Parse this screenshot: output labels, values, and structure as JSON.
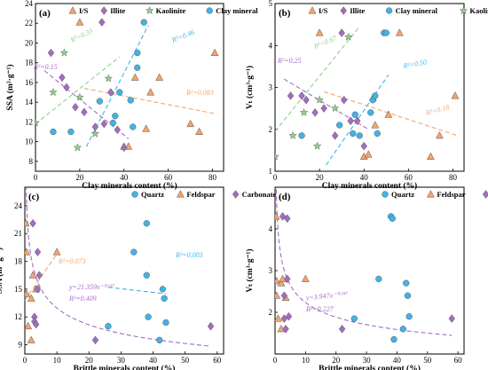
{
  "chart_data": [
    {
      "panel": "(a)",
      "type": "scatter",
      "xlabel": "Clay minerals content (%)",
      "ylabel": "SSA (m²·g⁻¹)",
      "xlim": [
        0,
        85
      ],
      "ylim": [
        7,
        24
      ],
      "xticks": [
        0,
        20,
        40,
        60,
        80
      ],
      "yticks": [
        8,
        10,
        12,
        14,
        16,
        18,
        20,
        22,
        24
      ],
      "legend": [
        "I/S",
        "Illite",
        "Kaolinite",
        "Clay mineral"
      ],
      "legend_position": "top",
      "series": [
        {
          "name": "I/S",
          "marker": "triangle",
          "color": "#f4a36c",
          "points": [
            [
              20,
              22.1
            ],
            [
              45,
              16.5
            ],
            [
              50,
              11.3
            ],
            [
              52,
              15.0
            ],
            [
              56,
              16.5
            ],
            [
              70,
              11.8
            ],
            [
              74,
              11.0
            ],
            [
              81,
              19.0
            ],
            [
              40,
              9.5
            ],
            [
              42,
              9.5
            ]
          ]
        },
        {
          "name": "Illite",
          "marker": "diamond",
          "color": "#a46cc4",
          "points": [
            [
              7,
              19.0
            ],
            [
              12,
              16.5
            ],
            [
              14,
              15.5
            ],
            [
              18,
              13.5
            ],
            [
              27,
              11.5
            ],
            [
              30,
              22.1
            ],
            [
              31,
              11.8
            ],
            [
              34,
              15.0
            ],
            [
              37,
              11.2
            ],
            [
              40,
              9.4
            ],
            [
              22,
              13.0
            ]
          ]
        },
        {
          "name": "Kaolinite",
          "marker": "star",
          "color": "#8ed08b",
          "points": [
            [
              0,
              11.9
            ],
            [
              8,
              15.0
            ],
            [
              13,
              19.0
            ],
            [
              19,
              9.4
            ],
            [
              20,
              14.5
            ],
            [
              27,
              10.8
            ],
            [
              33,
              16.4
            ]
          ]
        },
        {
          "name": "Clay mineral",
          "marker": "circle",
          "color": "#3fb4e8",
          "points": [
            [
              8,
              11.0
            ],
            [
              16,
              11.0
            ],
            [
              29,
              14.1
            ],
            [
              35,
              11.9
            ],
            [
              36,
              12.6
            ],
            [
              38,
              15.0
            ],
            [
              43,
              14.2
            ],
            [
              44,
              11.5
            ],
            [
              46,
              19.0
            ],
            [
              46,
              17.5
            ],
            [
              49,
              22.1
            ]
          ]
        }
      ],
      "trendlines": [
        {
          "color": "#f4a36c",
          "x": [
            22,
            82
          ],
          "y": [
            15.4,
            12.8
          ],
          "r2": "R²=0.083"
        },
        {
          "color": "#a46cc4",
          "x": [
            4,
            42
          ],
          "y": [
            17.2,
            10.3
          ],
          "r2": "R²=0.15"
        },
        {
          "color": "#8ed08b",
          "x": [
            0,
            38
          ],
          "y": [
            11.8,
            18.6
          ],
          "r2": "R²=0.33"
        },
        {
          "color": "#3fb4e8",
          "x": [
            23,
            51
          ],
          "y": [
            9.5,
            21.8
          ],
          "r2": "R²=0.46"
        }
      ]
    },
    {
      "panel": "(b)",
      "type": "scatter",
      "xlabel": "Clay minerals content (%)",
      "ylabel": "Vₜ (cm³·g⁻¹)",
      "xlim": [
        0,
        85
      ],
      "ylim": [
        1.0,
        5.0
      ],
      "xticks": [
        0,
        20,
        40,
        60,
        80
      ],
      "yticks": [
        1,
        2,
        3,
        4,
        5
      ],
      "legend": [
        "I/S",
        "Illite",
        "Clay mineral",
        "Kaolinite"
      ],
      "legend_position": "top",
      "series": [
        {
          "name": "I/S",
          "marker": "triangle",
          "color": "#f4a36c",
          "points": [
            [
              20,
              4.3
            ],
            [
              44,
              2.75
            ],
            [
              45,
              2.1
            ],
            [
              51,
              2.35
            ],
            [
              56,
              4.3
            ],
            [
              70,
              1.35
            ],
            [
              74,
              1.85
            ],
            [
              81,
              2.8
            ],
            [
              40,
              1.35
            ],
            [
              42,
              1.4
            ]
          ]
        },
        {
          "name": "Illite",
          "marker": "diamond",
          "color": "#a46cc4",
          "points": [
            [
              7,
              2.8
            ],
            [
              12,
              2.8
            ],
            [
              14,
              2.7
            ],
            [
              18,
              2.4
            ],
            [
              27,
              1.85
            ],
            [
              30,
              4.3
            ],
            [
              31,
              2.7
            ],
            [
              34,
              2.2
            ],
            [
              37,
              2.2
            ],
            [
              40,
              1.6
            ],
            [
              22,
              2.5
            ]
          ]
        },
        {
          "name": "Clay mineral",
          "marker": "circle",
          "color": "#3fb4e8",
          "points": [
            [
              12,
              1.85
            ],
            [
              29,
              2.1
            ],
            [
              35,
              1.9
            ],
            [
              36,
              2.35
            ],
            [
              38,
              1.85
            ],
            [
              43,
              2.4
            ],
            [
              44,
              2.7
            ],
            [
              45,
              2.8
            ],
            [
              46,
              1.9
            ],
            [
              49,
              4.3
            ],
            [
              50,
              4.3
            ]
          ]
        },
        {
          "name": "Kaolinite",
          "marker": "star",
          "color": "#8ed08b",
          "points": [
            [
              0,
              1.35
            ],
            [
              8,
              1.85
            ],
            [
              13,
              2.4
            ],
            [
              19,
              1.6
            ],
            [
              20,
              2.7
            ],
            [
              27,
              2.5
            ],
            [
              33,
              4.2
            ]
          ]
        }
      ],
      "trendlines": [
        {
          "color": "#f4a36c",
          "x": [
            22,
            82
          ],
          "y": [
            2.9,
            1.85
          ],
          "r2": "R²=0.18"
        },
        {
          "color": "#a46cc4",
          "x": [
            4,
            42
          ],
          "y": [
            3.2,
            2.0
          ],
          "r2": "R²=0.25"
        },
        {
          "color": "#8ed08b",
          "x": [
            0,
            38
          ],
          "y": [
            1.95,
            4.45
          ],
          "r2": "R²=0.67"
        },
        {
          "color": "#3fb4e8",
          "x": [
            23,
            51
          ],
          "y": [
            1.15,
            3.3
          ],
          "r2": "R²=0.50"
        }
      ]
    },
    {
      "panel": "(c)",
      "type": "scatter",
      "xlabel": "Brittle minerals content (%)",
      "ylabel": "SSA (m²·g⁻¹)",
      "xlim": [
        0,
        62
      ],
      "ylim": [
        8,
        26
      ],
      "xticks": [
        0,
        10,
        20,
        30,
        40,
        50,
        60
      ],
      "yticks": [
        9,
        12,
        15,
        18,
        21,
        24
      ],
      "legend": [
        "Quartz",
        "Feldspar",
        "Carbonate"
      ],
      "legend_position": "top",
      "series": [
        {
          "name": "Quartz",
          "marker": "circle",
          "color": "#3fb4e8",
          "points": [
            [
              26,
              11.0
            ],
            [
              34,
              19.0
            ],
            [
              38,
              22.1
            ],
            [
              38,
              16.5
            ],
            [
              38.5,
              12.0
            ],
            [
              42,
              9.5
            ],
            [
              43,
              15.0
            ],
            [
              43.5,
              14.0
            ],
            [
              44,
              11.4
            ]
          ]
        },
        {
          "name": "Feldspar",
          "marker": "triangle",
          "color": "#f4a36c",
          "points": [
            [
              0.3,
              22.1
            ],
            [
              0.5,
              19.0
            ],
            [
              0.5,
              14.5
            ],
            [
              1,
              11.0
            ],
            [
              2,
              14.0
            ],
            [
              2.5,
              16.5
            ],
            [
              3.5,
              15.0
            ],
            [
              10,
              19.0
            ],
            [
              2,
              9.5
            ]
          ]
        },
        {
          "name": "Carbonate",
          "marker": "diamond",
          "color": "#a46cc4",
          "points": [
            [
              2.5,
              22.1
            ],
            [
              3,
              12.0
            ],
            [
              3,
              11.5
            ],
            [
              3.5,
              11.2
            ],
            [
              4,
              19.0
            ],
            [
              4,
              15.0
            ],
            [
              4.5,
              16.5
            ],
            [
              22,
              9.5
            ],
            [
              58,
              11.0
            ]
          ]
        }
      ],
      "trendlines": [
        {
          "color": "#f4a36c",
          "type": "linear",
          "x": [
            0,
            10
          ],
          "y": [
            13.8,
            18.8
          ],
          "r2": "R²=0.073"
        },
        {
          "color": "#3fb4e8",
          "type": "linear",
          "x": [
            26,
            44
          ],
          "y": [
            15.2,
            14.5
          ],
          "r2": "R²=0.003"
        },
        {
          "color": "#a46cc4",
          "type": "power",
          "a": 21.359,
          "b": -0.217,
          "x": [
            0.3,
            58
          ],
          "equation": "y=21.359x⁻⁰·²¹⁷",
          "r2": "R²=0.409"
        }
      ]
    },
    {
      "panel": "(d)",
      "type": "scatter",
      "xlabel": "Brittle minerals content (%)",
      "ylabel": "Vₜ (cm³·g⁻¹)",
      "xlim": [
        0,
        62
      ],
      "ylim": [
        1.0,
        5.0
      ],
      "xticks": [
        0,
        10,
        20,
        30,
        40,
        50,
        60
      ],
      "yticks": [
        2,
        3,
        4
      ],
      "legend": [
        "Quartz",
        "Feldspar",
        "Carbonate"
      ],
      "legend_position": "top",
      "series": [
        {
          "name": "Quartz",
          "marker": "circle",
          "color": "#3fb4e8",
          "points": [
            [
              26,
              1.85
            ],
            [
              34,
              2.8
            ],
            [
              38,
              4.3
            ],
            [
              38.5,
              4.25
            ],
            [
              39,
              1.35
            ],
            [
              42,
              1.6
            ],
            [
              43,
              2.7
            ],
            [
              43.5,
              2.4
            ],
            [
              44,
              1.9
            ]
          ]
        },
        {
          "name": "Feldspar",
          "marker": "triangle",
          "color": "#f4a36c",
          "points": [
            [
              0.3,
              4.3
            ],
            [
              0.5,
              2.75
            ],
            [
              0.5,
              2.4
            ],
            [
              1,
              1.85
            ],
            [
              2,
              2.7
            ],
            [
              2.5,
              2.8
            ],
            [
              3.5,
              2.35
            ],
            [
              10,
              2.8
            ],
            [
              2,
              1.6
            ]
          ]
        },
        {
          "name": "Carbonate",
          "marker": "diamond",
          "color": "#a46cc4",
          "points": [
            [
              2.5,
              4.3
            ],
            [
              3,
              2.4
            ],
            [
              3,
              1.85
            ],
            [
              3.5,
              1.6
            ],
            [
              4,
              4.25
            ],
            [
              4,
              2.8
            ],
            [
              4.5,
              1.9
            ],
            [
              22,
              1.6
            ],
            [
              58,
              1.85
            ]
          ]
        }
      ],
      "trendlines": [
        {
          "color": "#a46cc4",
          "type": "power",
          "a": 3.947,
          "b": -0.247,
          "x": [
            0.4,
            58
          ],
          "equation": "y=3.947x⁻⁰·²⁴⁷",
          "r2": "R²=0.227"
        }
      ]
    }
  ]
}
